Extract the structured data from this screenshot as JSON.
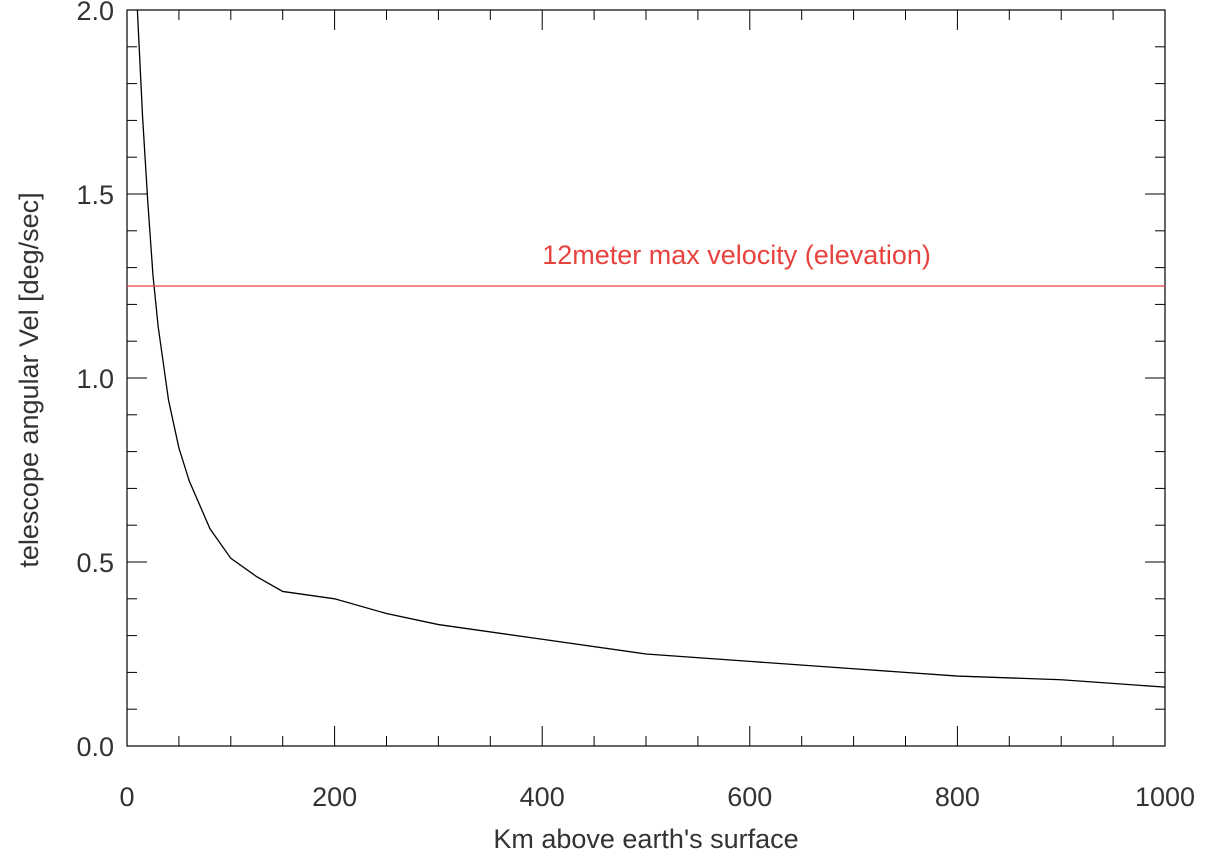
{
  "chart_data": {
    "type": "line",
    "title": "",
    "xlabel": "Km above earth's surface",
    "ylabel": "telescope angular Vel [deg/sec]",
    "xlim": [
      0,
      1000
    ],
    "ylim": [
      0,
      2.0
    ],
    "xticks": [
      0,
      200,
      400,
      600,
      800,
      1000
    ],
    "yticks": [
      0.0,
      0.5,
      1.0,
      1.5,
      2.0
    ],
    "xtick_labels": [
      "0",
      "200",
      "400",
      "600",
      "800",
      "1000"
    ],
    "ytick_labels": [
      "0.0",
      "0.5",
      "1.0",
      "1.5",
      "2.0"
    ],
    "x_minor_step": 50,
    "y_minor_step": 0.1,
    "grid": false,
    "series": [
      {
        "color": "#000000",
        "x": [
          10,
          15,
          20,
          25,
          30,
          40,
          50,
          60,
          80,
          100,
          125,
          150,
          200,
          250,
          300,
          400,
          500,
          600,
          700,
          800,
          900,
          1000
        ],
        "y": [
          2.0,
          1.71,
          1.48,
          1.28,
          1.14,
          0.94,
          0.81,
          0.72,
          0.59,
          0.51,
          0.46,
          0.42,
          0.4,
          0.36,
          0.33,
          0.29,
          0.25,
          0.23,
          0.21,
          0.19,
          0.18,
          0.16
        ]
      },
      {
        "color": "#e8423f",
        "x": [
          0,
          1000
        ],
        "y": [
          1.25,
          1.25
        ]
      }
    ],
    "annotations": [
      {
        "text": "12meter max velocity (elevation)",
        "x": 400,
        "y": 1.31,
        "color": "#e8423f"
      }
    ]
  }
}
